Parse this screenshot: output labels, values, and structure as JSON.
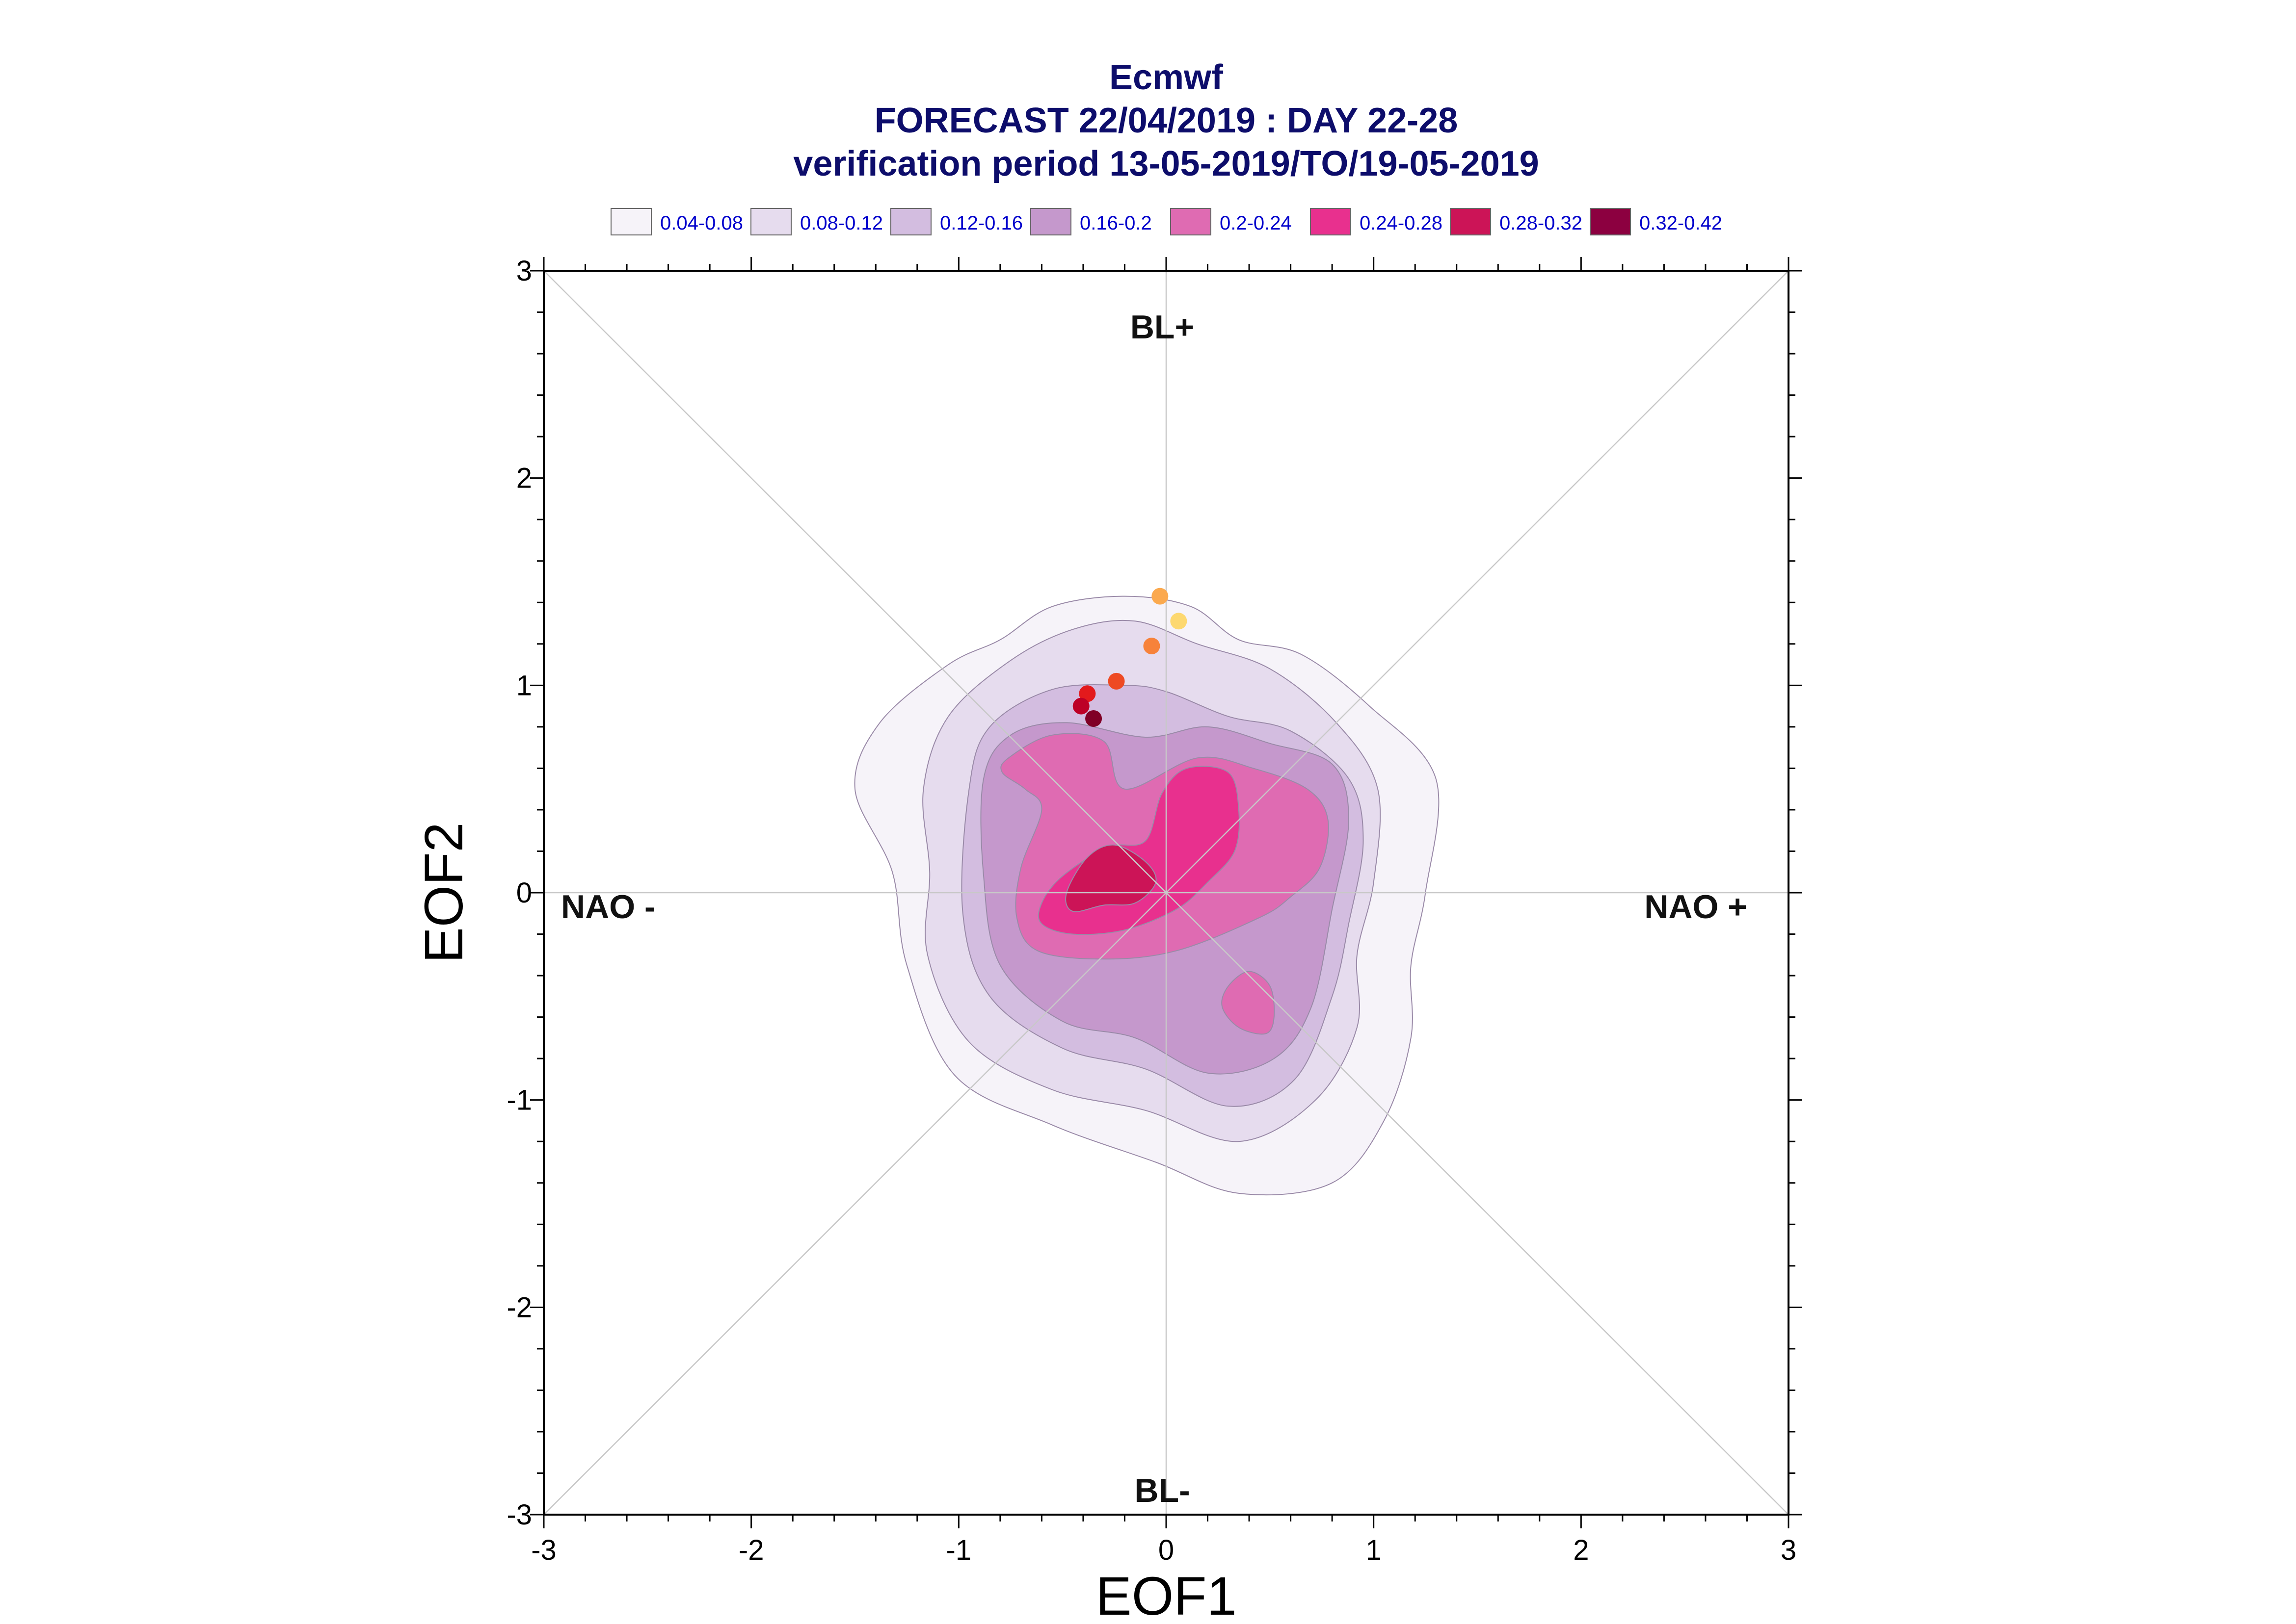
{
  "chart_data": {
    "type": "contour",
    "title": "Ecmwf",
    "subtitle1": "FORECAST 22/04/2019 : DAY 22-28",
    "subtitle2": "verification period 13-05-2019/TO/19-05-2019",
    "xlabel": "EOF1",
    "ylabel": "EOF2",
    "xlim": [
      -3,
      3
    ],
    "ylim": [
      -3,
      3
    ],
    "x_ticks": [
      "-3",
      "-2",
      "-1",
      "0",
      "1",
      "2",
      "3"
    ],
    "y_ticks": [
      "-3",
      "-2",
      "-1",
      "0",
      "1",
      "2",
      "3"
    ],
    "legend_position": "top",
    "legend": [
      {
        "label": "0.04-0.08",
        "color": "#f6f3f9"
      },
      {
        "label": "0.08-0.12",
        "color": "#e6dcee"
      },
      {
        "label": "0.12-0.16",
        "color": "#d3bde0"
      },
      {
        "label": "0.16-0.2",
        "color": "#c598cc"
      },
      {
        "label": "0.2-0.24",
        "color": "#df6bb2"
      },
      {
        "label": "0.24-0.28",
        "color": "#e8308e"
      },
      {
        "label": "0.28-0.32",
        "color": "#cc1457"
      },
      {
        "label": "0.32-0.42",
        "color": "#8c0040"
      }
    ],
    "regime_labels": {
      "top": "BL+",
      "bottom": "BL-",
      "left": "NAO -",
      "right": "NAO +"
    },
    "contours": [
      {
        "level": "0.04-0.08",
        "color": "#f6f3f9",
        "points": [
          [
            -1.5,
            0.5
          ],
          [
            -1.38,
            0.82
          ],
          [
            -1.05,
            1.1
          ],
          [
            -0.8,
            1.22
          ],
          [
            -0.55,
            1.38
          ],
          [
            -0.2,
            1.43
          ],
          [
            0.12,
            1.38
          ],
          [
            0.35,
            1.22
          ],
          [
            0.65,
            1.15
          ],
          [
            0.98,
            0.9
          ],
          [
            1.3,
            0.55
          ],
          [
            1.25,
            0.0
          ],
          [
            1.18,
            -0.35
          ],
          [
            1.18,
            -0.7
          ],
          [
            1.05,
            -1.1
          ],
          [
            0.8,
            -1.4
          ],
          [
            0.35,
            -1.45
          ],
          [
            -0.05,
            -1.3
          ],
          [
            -0.55,
            -1.12
          ],
          [
            -1.02,
            -0.88
          ],
          [
            -1.25,
            -0.35
          ],
          [
            -1.32,
            0.1
          ]
        ]
      },
      {
        "level": "0.08-0.12",
        "color": "#e6dcee",
        "points": [
          [
            -1.17,
            0.5
          ],
          [
            -1.05,
            0.85
          ],
          [
            -0.75,
            1.12
          ],
          [
            -0.45,
            1.27
          ],
          [
            -0.15,
            1.31
          ],
          [
            0.15,
            1.2
          ],
          [
            0.5,
            1.08
          ],
          [
            0.82,
            0.82
          ],
          [
            1.02,
            0.5
          ],
          [
            1.0,
            0.05
          ],
          [
            0.92,
            -0.3
          ],
          [
            0.92,
            -0.65
          ],
          [
            0.72,
            -1.0
          ],
          [
            0.35,
            -1.2
          ],
          [
            -0.1,
            -1.05
          ],
          [
            -0.55,
            -0.95
          ],
          [
            -0.95,
            -0.72
          ],
          [
            -1.15,
            -0.3
          ],
          [
            -1.14,
            0.1
          ]
        ]
      },
      {
        "level": "0.12-0.16",
        "color": "#d3bde0",
        "points": [
          [
            -0.95,
            0.5
          ],
          [
            -0.85,
            0.8
          ],
          [
            -0.55,
            0.98
          ],
          [
            -0.2,
            1.0
          ],
          [
            0.0,
            0.97
          ],
          [
            0.3,
            0.85
          ],
          [
            0.6,
            0.78
          ],
          [
            0.88,
            0.55
          ],
          [
            0.95,
            0.25
          ],
          [
            0.88,
            -0.15
          ],
          [
            0.8,
            -0.5
          ],
          [
            0.62,
            -0.9
          ],
          [
            0.3,
            -1.03
          ],
          [
            -0.1,
            -0.85
          ],
          [
            -0.5,
            -0.75
          ],
          [
            -0.85,
            -0.5
          ],
          [
            -0.98,
            -0.1
          ]
        ]
      },
      {
        "level": "0.16-0.2",
        "color": "#c598cc",
        "points": [
          [
            -0.88,
            0.55
          ],
          [
            -0.75,
            0.76
          ],
          [
            -0.48,
            0.82
          ],
          [
            -0.1,
            0.75
          ],
          [
            0.2,
            0.8
          ],
          [
            0.5,
            0.72
          ],
          [
            0.8,
            0.62
          ],
          [
            0.88,
            0.35
          ],
          [
            0.8,
            -0.08
          ],
          [
            0.7,
            -0.55
          ],
          [
            0.52,
            -0.8
          ],
          [
            0.2,
            -0.87
          ],
          [
            -0.15,
            -0.7
          ],
          [
            -0.5,
            -0.62
          ],
          [
            -0.8,
            -0.35
          ],
          [
            -0.88,
            0.08
          ]
        ]
      },
      {
        "level": "0.2-0.24",
        "color": "#df6bb2",
        "points": [
          [
            -0.76,
            0.65
          ],
          [
            -0.55,
            0.76
          ],
          [
            -0.3,
            0.73
          ],
          [
            -0.2,
            0.5
          ],
          [
            0.15,
            0.65
          ],
          [
            0.42,
            0.6
          ],
          [
            0.68,
            0.5
          ],
          [
            0.78,
            0.35
          ],
          [
            0.74,
            0.12
          ],
          [
            0.6,
            -0.02
          ],
          [
            0.45,
            -0.12
          ],
          [
            0.05,
            -0.28
          ],
          [
            -0.3,
            -0.32
          ],
          [
            -0.62,
            -0.28
          ],
          [
            -0.72,
            -0.12
          ],
          [
            -0.7,
            0.12
          ],
          [
            -0.6,
            0.4
          ],
          [
            -0.68,
            0.5
          ],
          [
            -0.79,
            0.58
          ]
        ]
      },
      {
        "level": "0.2-0.24",
        "color": "#df6bb2",
        "points": [
          [
            0.3,
            -0.45
          ],
          [
            0.4,
            -0.38
          ],
          [
            0.5,
            -0.45
          ],
          [
            0.52,
            -0.6
          ],
          [
            0.48,
            -0.68
          ],
          [
            0.35,
            -0.65
          ],
          [
            0.27,
            -0.55
          ]
        ]
      },
      {
        "level": "0.24-0.28",
        "color": "#e8308e",
        "points": [
          [
            -0.6,
            -0.05
          ],
          [
            -0.5,
            0.08
          ],
          [
            -0.28,
            0.22
          ],
          [
            -0.1,
            0.25
          ],
          [
            -0.02,
            0.48
          ],
          [
            0.1,
            0.6
          ],
          [
            0.3,
            0.58
          ],
          [
            0.35,
            0.4
          ],
          [
            0.33,
            0.2
          ],
          [
            0.2,
            0.05
          ],
          [
            0.05,
            -0.08
          ],
          [
            -0.2,
            -0.18
          ],
          [
            -0.45,
            -0.2
          ],
          [
            -0.6,
            -0.15
          ]
        ]
      },
      {
        "level": "0.28-0.32",
        "color": "#cc1457",
        "points": [
          [
            -0.48,
            0.0
          ],
          [
            -0.38,
            0.17
          ],
          [
            -0.25,
            0.23
          ],
          [
            -0.1,
            0.15
          ],
          [
            -0.05,
            0.05
          ],
          [
            -0.15,
            -0.05
          ],
          [
            -0.3,
            -0.06
          ],
          [
            -0.45,
            -0.09
          ]
        ]
      }
    ],
    "points": [
      {
        "x": -0.03,
        "y": 1.43,
        "color": "#fba94e"
      },
      {
        "x": 0.06,
        "y": 1.31,
        "color": "#fdd870"
      },
      {
        "x": -0.07,
        "y": 1.19,
        "color": "#f7823a"
      },
      {
        "x": -0.24,
        "y": 1.02,
        "color": "#ee4a23"
      },
      {
        "x": -0.38,
        "y": 0.96,
        "color": "#e31a1c"
      },
      {
        "x": -0.41,
        "y": 0.9,
        "color": "#bd0026"
      },
      {
        "x": -0.35,
        "y": 0.84,
        "color": "#800026"
      }
    ]
  }
}
